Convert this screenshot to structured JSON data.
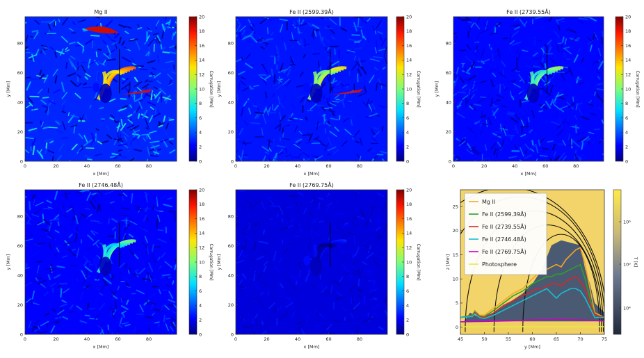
{
  "chart_data": [
    {
      "type": "heatmap",
      "title": "Mg II",
      "xlabel": "x [Mm]",
      "ylabel": "y [Mm]",
      "xticks": [
        "0",
        "20",
        "40",
        "60",
        "80"
      ],
      "yticks": [
        "0",
        "20",
        "40",
        "60",
        "80"
      ],
      "xlim": [
        0,
        98
      ],
      "ylim": [
        0,
        98
      ],
      "colorbar": {
        "label": "Corrugation [Mm]",
        "ticks": [
          "0",
          "2",
          "4",
          "6",
          "8",
          "10",
          "12",
          "14",
          "16",
          "18",
          "20"
        ],
        "range": [
          0,
          20
        ]
      },
      "cut_line": {
        "x": 61,
        "y": [
          46,
          76
        ]
      },
      "background_level": 3.0,
      "hot_region_level": 16
    },
    {
      "type": "heatmap",
      "title": "Fe II (2599.39Å)",
      "xlabel": "x [Mm]",
      "ylabel": "y [Mm]",
      "xticks": [
        "0",
        "20",
        "40",
        "60",
        "80"
      ],
      "yticks": [
        "0",
        "20",
        "40",
        "60",
        "80"
      ],
      "xlim": [
        0,
        98
      ],
      "ylim": [
        0,
        98
      ],
      "colorbar": {
        "label": "Corrugation [Mm]",
        "ticks": [
          "0",
          "2",
          "4",
          "6",
          "8",
          "10",
          "12",
          "14",
          "16",
          "18",
          "20"
        ],
        "range": [
          0,
          20
        ]
      },
      "cut_line": {
        "x": 61,
        "y": [
          46,
          76
        ]
      },
      "background_level": 2.6,
      "hot_region_level": 13
    },
    {
      "type": "heatmap",
      "title": "Fe II (2739.55Å)",
      "xlabel": "x [Mm]",
      "ylabel": "y [Mm]",
      "xticks": [
        "0",
        "20",
        "40",
        "60",
        "80"
      ],
      "yticks": [
        "0",
        "20",
        "40",
        "60",
        "80"
      ],
      "xlim": [
        0,
        98
      ],
      "ylim": [
        0,
        98
      ],
      "colorbar": {
        "label": "Corrugation [Mm]",
        "ticks": [
          "0",
          "2",
          "4",
          "6",
          "8",
          "10",
          "12",
          "14",
          "16",
          "18",
          "20"
        ],
        "range": [
          0,
          20
        ]
      },
      "cut_line": {
        "x": 61,
        "y": [
          46,
          76
        ]
      },
      "background_level": 2.3,
      "hot_region_level": 11
    },
    {
      "type": "heatmap",
      "title": "Fe II (2746.48Å)",
      "xlabel": "x [Mm]",
      "ylabel": "y [Mm]",
      "xticks": [
        "0",
        "20",
        "40",
        "60",
        "80"
      ],
      "yticks": [
        "0",
        "20",
        "40",
        "60",
        "80"
      ],
      "xlim": [
        0,
        98
      ],
      "ylim": [
        0,
        98
      ],
      "colorbar": {
        "label": "Corrugation [Mm]",
        "ticks": [
          "0",
          "2",
          "4",
          "6",
          "8",
          "10",
          "12",
          "14",
          "16",
          "18",
          "20"
        ],
        "range": [
          0,
          20
        ]
      },
      "cut_line": {
        "x": 61,
        "y": [
          46,
          76
        ]
      },
      "background_level": 2.2,
      "hot_region_level": 10
    },
    {
      "type": "heatmap",
      "title": "Fe II (2769.75Å)",
      "xlabel": "x [Mm]",
      "ylabel": "y [Mm]",
      "xticks": [
        "0",
        "20",
        "40",
        "60",
        "80"
      ],
      "yticks": [
        "0",
        "20",
        "40",
        "60",
        "80"
      ],
      "xlim": [
        0,
        98
      ],
      "ylim": [
        0,
        98
      ],
      "colorbar": {
        "label": "Corrugation [Mm]",
        "ticks": [
          "0",
          "2",
          "4",
          "6",
          "8",
          "10",
          "12",
          "14",
          "16",
          "18",
          "20"
        ],
        "range": [
          0,
          20
        ]
      },
      "cut_line": {
        "x": 61,
        "y": [
          46,
          76
        ]
      },
      "background_level": 1.6,
      "hot_region_level": 3
    },
    {
      "type": "line",
      "title": "",
      "xlabel": "y [Mm]",
      "ylabel": "z [Mm]",
      "xticks": [
        "45",
        "50",
        "55",
        "60",
        "65",
        "70",
        "75"
      ],
      "yticks": [
        "0",
        "5",
        "10",
        "15",
        "20",
        "25"
      ],
      "xlim": [
        45,
        75
      ],
      "ylim": [
        -1.5,
        28.5
      ],
      "colorbar": {
        "label": "T [K]",
        "ticks": [
          "10⁴",
          "10⁵",
          "10⁶"
        ]
      },
      "legend_position": "top-left",
      "series": [
        {
          "name": "Mg II",
          "color": "#f5a623",
          "x": [
            45,
            47.5,
            48,
            49,
            50,
            52,
            54,
            56,
            58,
            60,
            61,
            62,
            63,
            64,
            65,
            66,
            67,
            68,
            69,
            70,
            71,
            72,
            73,
            75
          ],
          "y": [
            2,
            2.5,
            3.5,
            2.5,
            2.5,
            4,
            5.5,
            7,
            8,
            10,
            11,
            12,
            12,
            12.5,
            13,
            12.5,
            14,
            15,
            16,
            16.5,
            13,
            8,
            3,
            2
          ]
        },
        {
          "name": "Fe II (2599.39Å)",
          "color": "#2ca02c",
          "x": [
            45,
            47.5,
            48,
            49,
            50,
            52,
            54,
            56,
            58,
            60,
            61,
            62,
            63,
            64,
            65,
            66,
            67,
            68,
            69,
            70,
            71,
            72,
            73,
            75
          ],
          "y": [
            2,
            2.5,
            3.2,
            2.3,
            2.2,
            3.5,
            5,
            6.5,
            7.5,
            9,
            9.5,
            10,
            10.5,
            10.5,
            11,
            11,
            11.5,
            12,
            12.5,
            13,
            10,
            6,
            2.5,
            2
          ]
        },
        {
          "name": "Fe II (2739.55Å)",
          "color": "#d62728",
          "x": [
            45,
            47.5,
            48,
            49,
            50,
            52,
            54,
            56,
            58,
            60,
            61,
            62,
            63,
            64,
            65,
            66,
            67,
            68,
            69,
            70,
            71,
            72,
            73,
            75
          ],
          "y": [
            2,
            2.3,
            3,
            2.2,
            2,
            3,
            4.5,
            5.5,
            6.5,
            7.5,
            8,
            8,
            8.5,
            9,
            9,
            8.5,
            9.5,
            10,
            10.5,
            9.5,
            8,
            5,
            2.5,
            2
          ]
        },
        {
          "name": "Fe II (2746.48Å)",
          "color": "#17becf",
          "x": [
            45,
            47.5,
            48,
            49,
            50,
            52,
            54,
            56,
            58,
            60,
            61,
            62,
            63,
            64,
            65,
            66,
            67,
            68,
            69,
            70,
            71,
            72,
            73,
            75
          ],
          "y": [
            2,
            2.2,
            2.8,
            2,
            1.8,
            2.5,
            3.5,
            4.5,
            5.5,
            6.5,
            7,
            7.5,
            8,
            7,
            6,
            7,
            7.5,
            8,
            8,
            7.5,
            6,
            4,
            2,
            2
          ]
        },
        {
          "name": "Fe II (2769.75Å)",
          "color": "#c800c8",
          "x": [
            45,
            50,
            55,
            60,
            65,
            70,
            75
          ],
          "y": [
            1.1,
            1.2,
            1.3,
            1.5,
            1.6,
            1.5,
            1.3
          ]
        },
        {
          "name": "Photosphere",
          "color": "#e8e84a",
          "x": [
            45,
            50,
            55,
            60,
            65,
            70,
            75
          ],
          "y": [
            0.1,
            0.1,
            0.1,
            0.1,
            0.1,
            0.1,
            0.1
          ]
        }
      ]
    }
  ]
}
